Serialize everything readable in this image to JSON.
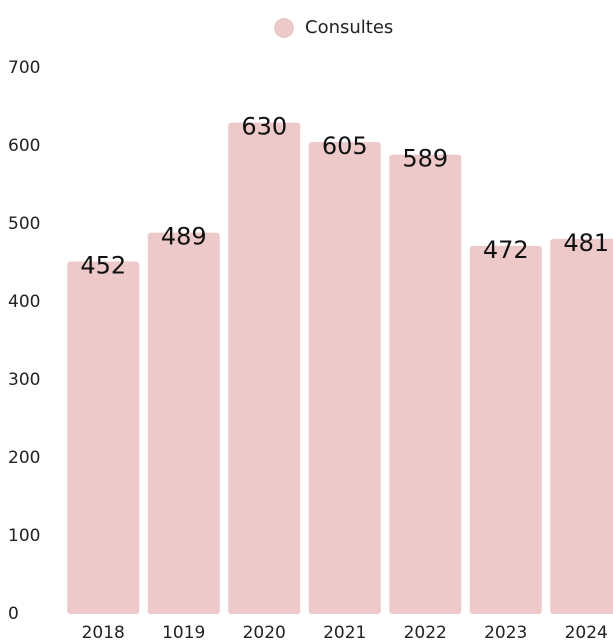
{
  "chart_data": {
    "type": "bar",
    "legend": "Consultes",
    "categories": [
      "2018",
      "1019",
      "2020",
      "2021",
      "2022",
      "2023",
      "2024"
    ],
    "values": [
      452,
      489,
      630,
      605,
      589,
      472,
      481
    ],
    "color": "#eec9c9",
    "ylim": [
      0,
      700
    ],
    "yticks": [
      0,
      100,
      200,
      300,
      400,
      500,
      600,
      700
    ],
    "legend_position": "top",
    "grid": false
  }
}
